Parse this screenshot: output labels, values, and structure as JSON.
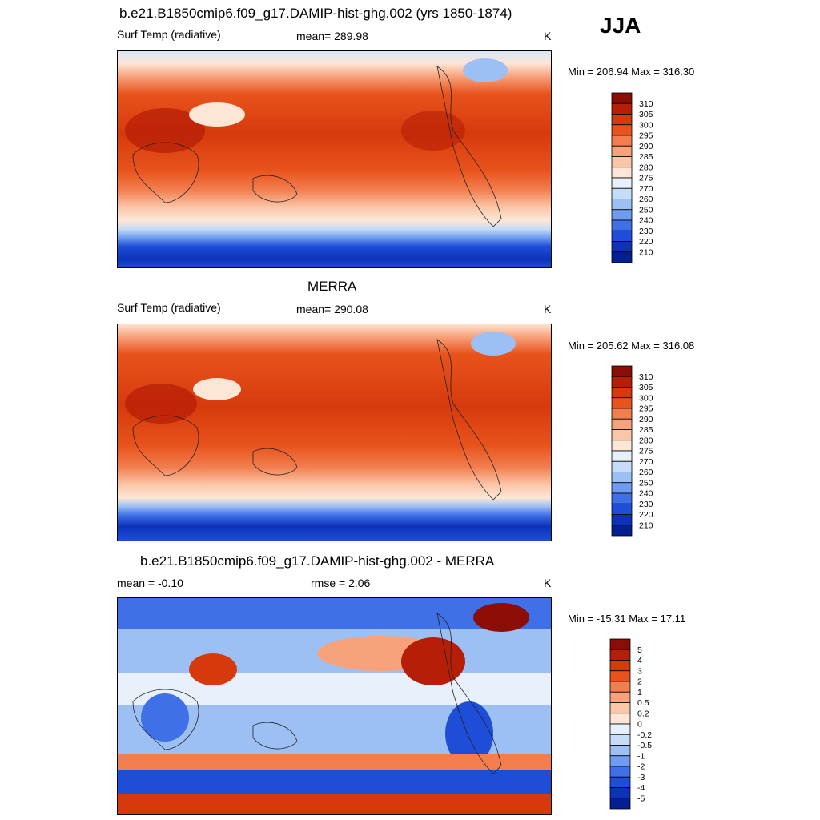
{
  "season": "JJA",
  "panels": [
    {
      "title": "b.e21.B1850cmip6.f09_g17.DAMIP-hist-ghg.002 (yrs 1850-1874)",
      "left_label": "Surf Temp (radiative)",
      "center_label": "mean= 289.98",
      "unit": "K",
      "minmax": "Min = 206.94 Max = 316.30"
    },
    {
      "title": "MERRA",
      "left_label": "Surf Temp (radiative)",
      "center_label": "mean= 290.08",
      "unit": "K",
      "minmax": "Min = 205.62 Max = 316.08"
    },
    {
      "title": "b.e21.B1850cmip6.f09_g17.DAMIP-hist-ghg.002 - MERRA",
      "left_label": "mean =  -0.10",
      "center_label": "rmse =   2.06",
      "unit": "K",
      "minmax": "Min = -15.31 Max =  17.11"
    }
  ],
  "chart_data": [
    {
      "type": "heatmap",
      "title": "b.e21.B1850cmip6.f09_g17.DAMIP-hist-ghg.002 (yrs 1850-1874)",
      "variable": "Surf Temp (radiative)",
      "units": "K",
      "mean": 289.98,
      "min": 206.94,
      "max": 316.3,
      "colorbar_levels": [
        "310",
        "305",
        "300",
        "295",
        "290",
        "285",
        "280",
        "275",
        "270",
        "260",
        "250",
        "240",
        "230",
        "220",
        "210"
      ],
      "colorbar_colors": [
        "#8c0d05",
        "#b71e07",
        "#d63a0c",
        "#e8531c",
        "#f27e4f",
        "#f8a27c",
        "#fbc6a8",
        "#fde6d6",
        "#e7f0fb",
        "#c6dcf7",
        "#9dc0f4",
        "#6f9cf0",
        "#3f70e8",
        "#1e4ed8",
        "#0d32b8",
        "#041f8f"
      ]
    },
    {
      "type": "heatmap",
      "title": "MERRA",
      "variable": "Surf Temp (radiative)",
      "units": "K",
      "mean": 290.08,
      "min": 205.62,
      "max": 316.08,
      "colorbar_levels": [
        "310",
        "305",
        "300",
        "295",
        "290",
        "285",
        "280",
        "275",
        "270",
        "260",
        "250",
        "240",
        "230",
        "220",
        "210"
      ],
      "colorbar_colors": [
        "#8c0d05",
        "#b71e07",
        "#d63a0c",
        "#e8531c",
        "#f27e4f",
        "#f8a27c",
        "#fbc6a8",
        "#fde6d6",
        "#e7f0fb",
        "#c6dcf7",
        "#9dc0f4",
        "#6f9cf0",
        "#3f70e8",
        "#1e4ed8",
        "#0d32b8",
        "#041f8f"
      ]
    },
    {
      "type": "heatmap",
      "title": "b.e21.B1850cmip6.f09_g17.DAMIP-hist-ghg.002 - MERRA",
      "units": "K",
      "mean": -0.1,
      "rmse": 2.06,
      "min": -15.31,
      "max": 17.11,
      "colorbar_levels": [
        "5",
        "4",
        "3",
        "2",
        "1",
        "0.5",
        "0.2",
        "0",
        "-0.2",
        "-0.5",
        "-1",
        "-2",
        "-3",
        "-4",
        "-5"
      ],
      "colorbar_colors": [
        "#8c0d05",
        "#b71e07",
        "#d63a0c",
        "#e8531c",
        "#f27e4f",
        "#f8a27c",
        "#fbc6a8",
        "#fde6d6",
        "#e7f0fb",
        "#c6dcf7",
        "#9dc0f4",
        "#6f9cf0",
        "#3f70e8",
        "#1e4ed8",
        "#0d32b8",
        "#041f8f"
      ]
    }
  ]
}
